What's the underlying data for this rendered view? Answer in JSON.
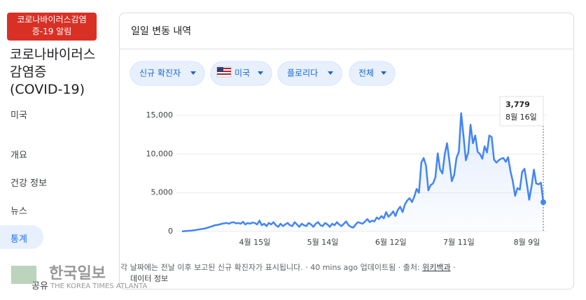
{
  "sidebar": {
    "alert": "코로나바이러스감염증-19 알림",
    "title": "코로나바이러스 감염증 (COVID-19)",
    "region": "미국",
    "nav": [
      "개요",
      "건강 정보",
      "뉴스",
      "통계"
    ],
    "share": "공유"
  },
  "panel": {
    "heading": "일일 변동 내역",
    "chips": [
      "신규 확진자",
      "미국",
      "플로리다",
      "전체"
    ],
    "footnote": "각 날짜에는 전날 이후 보고된 신규 확진자가 표시됩니다. · 40 mins ago 업데이트됨 · 출처: ",
    "source": "위키백과",
    "sep": " ·",
    "data_info": "데이터 정보"
  },
  "watermark": {
    "name": "한국일보",
    "sub": "THE KOREA TIMES ATLANTA"
  },
  "chart_data": {
    "type": "line",
    "color": "#4285f4",
    "grid": true,
    "ylim": [
      0,
      15000
    ],
    "yticks": [
      0,
      {
        "value": 5000,
        "label": "5,000"
      },
      {
        "value": 10000,
        "label": "10,000"
      },
      {
        "value": 15000,
        "label": "15,000"
      }
    ],
    "categories": [
      null,
      null,
      null,
      null,
      null,
      null,
      null,
      null,
      null,
      null,
      null,
      null,
      null,
      null,
      null,
      null,
      null,
      null,
      null,
      null,
      null,
      null,
      null,
      null,
      null,
      null,
      null,
      null,
      null,
      null,
      null,
      "4월 15일",
      null,
      null,
      null,
      null,
      null,
      null,
      null,
      null,
      null,
      null,
      null,
      null,
      null,
      null,
      null,
      null,
      null,
      null,
      null,
      null,
      null,
      null,
      null,
      null,
      null,
      null,
      null,
      null,
      "5월 14일",
      null,
      null,
      null,
      null,
      null,
      null,
      null,
      null,
      null,
      null,
      null,
      null,
      null,
      null,
      null,
      null,
      null,
      null,
      null,
      null,
      null,
      null,
      null,
      null,
      null,
      null,
      null,
      null,
      "6월 12일",
      null,
      null,
      null,
      null,
      null,
      null,
      null,
      null,
      null,
      null,
      null,
      null,
      null,
      null,
      null,
      null,
      null,
      null,
      null,
      null,
      null,
      null,
      null,
      null,
      null,
      null,
      null,
      null,
      "7월 11일",
      null,
      null,
      null,
      null,
      null,
      null,
      null,
      null,
      null,
      null,
      null,
      null,
      null,
      null,
      null,
      null,
      null,
      null,
      null,
      null,
      null,
      null,
      null,
      null,
      null,
      null,
      null,
      null,
      "8월 9일",
      null,
      null,
      null,
      null,
      null,
      null,
      null
    ],
    "values": [
      20,
      40,
      60,
      90,
      120,
      150,
      200,
      250,
      300,
      350,
      400,
      500,
      600,
      700,
      800,
      850,
      900,
      1000,
      1050,
      1100,
      1000,
      1150,
      1200,
      1050,
      1100,
      1000,
      1250,
      900,
      1100,
      1000,
      1150,
      1100,
      900,
      1400,
      800,
      1000,
      700,
      1100,
      900,
      1200,
      800,
      600,
      1000,
      700,
      900,
      1100,
      800,
      700,
      1200,
      900,
      600,
      1000,
      800,
      700,
      1100,
      900,
      600,
      1000,
      1200,
      800,
      700,
      1100,
      900,
      600,
      1000,
      800,
      1200,
      900,
      700,
      1000,
      1300,
      800,
      600,
      500,
      900,
      1200,
      1100,
      1000,
      1300,
      1600,
      1200,
      1400,
      1300,
      1800,
      1600,
      2000,
      1700,
      2500,
      1900,
      2200,
      2600,
      2000,
      2800,
      3200,
      2500,
      3500,
      4000,
      4300,
      3800,
      4500,
      5500,
      5000,
      8900,
      9500,
      8500,
      5300,
      6000,
      6200,
      7000,
      10100,
      8000,
      7500,
      10000,
      11400,
      9000,
      6500,
      7300,
      9500,
      10300,
      15300,
      12300,
      9200,
      10200,
      13800,
      11400,
      12400,
      10300,
      10000,
      9400,
      11000,
      10200,
      12400,
      12200,
      9300,
      8900,
      9200,
      9400,
      9500,
      9000,
      9600,
      7800,
      6500,
      4600,
      5600,
      5400,
      7700,
      8100,
      6200,
      4100,
      5800,
      8000,
      6200,
      6100,
      6300,
      3779
    ],
    "tooltip": {
      "label": "3,779",
      "date": "8월 16일"
    }
  }
}
